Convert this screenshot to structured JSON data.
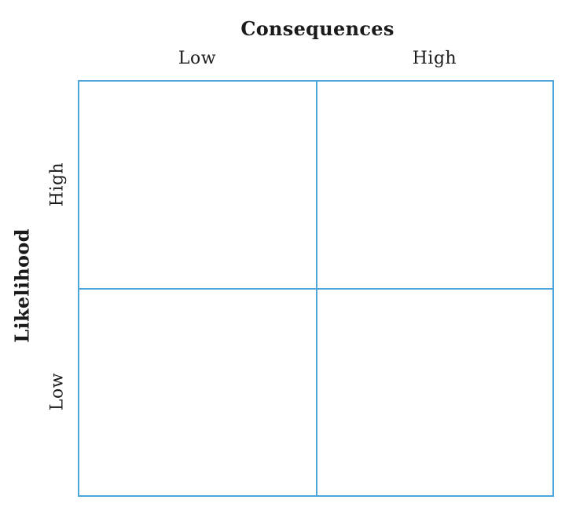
{
  "x_axis": {
    "title": "Consequences",
    "ticks": [
      "Low",
      "High"
    ]
  },
  "y_axis": {
    "title": "Likelihood",
    "ticks": [
      "High",
      "Low"
    ]
  },
  "colors": {
    "grid_line": "#4da6d9",
    "text": "#1a1a1a"
  }
}
